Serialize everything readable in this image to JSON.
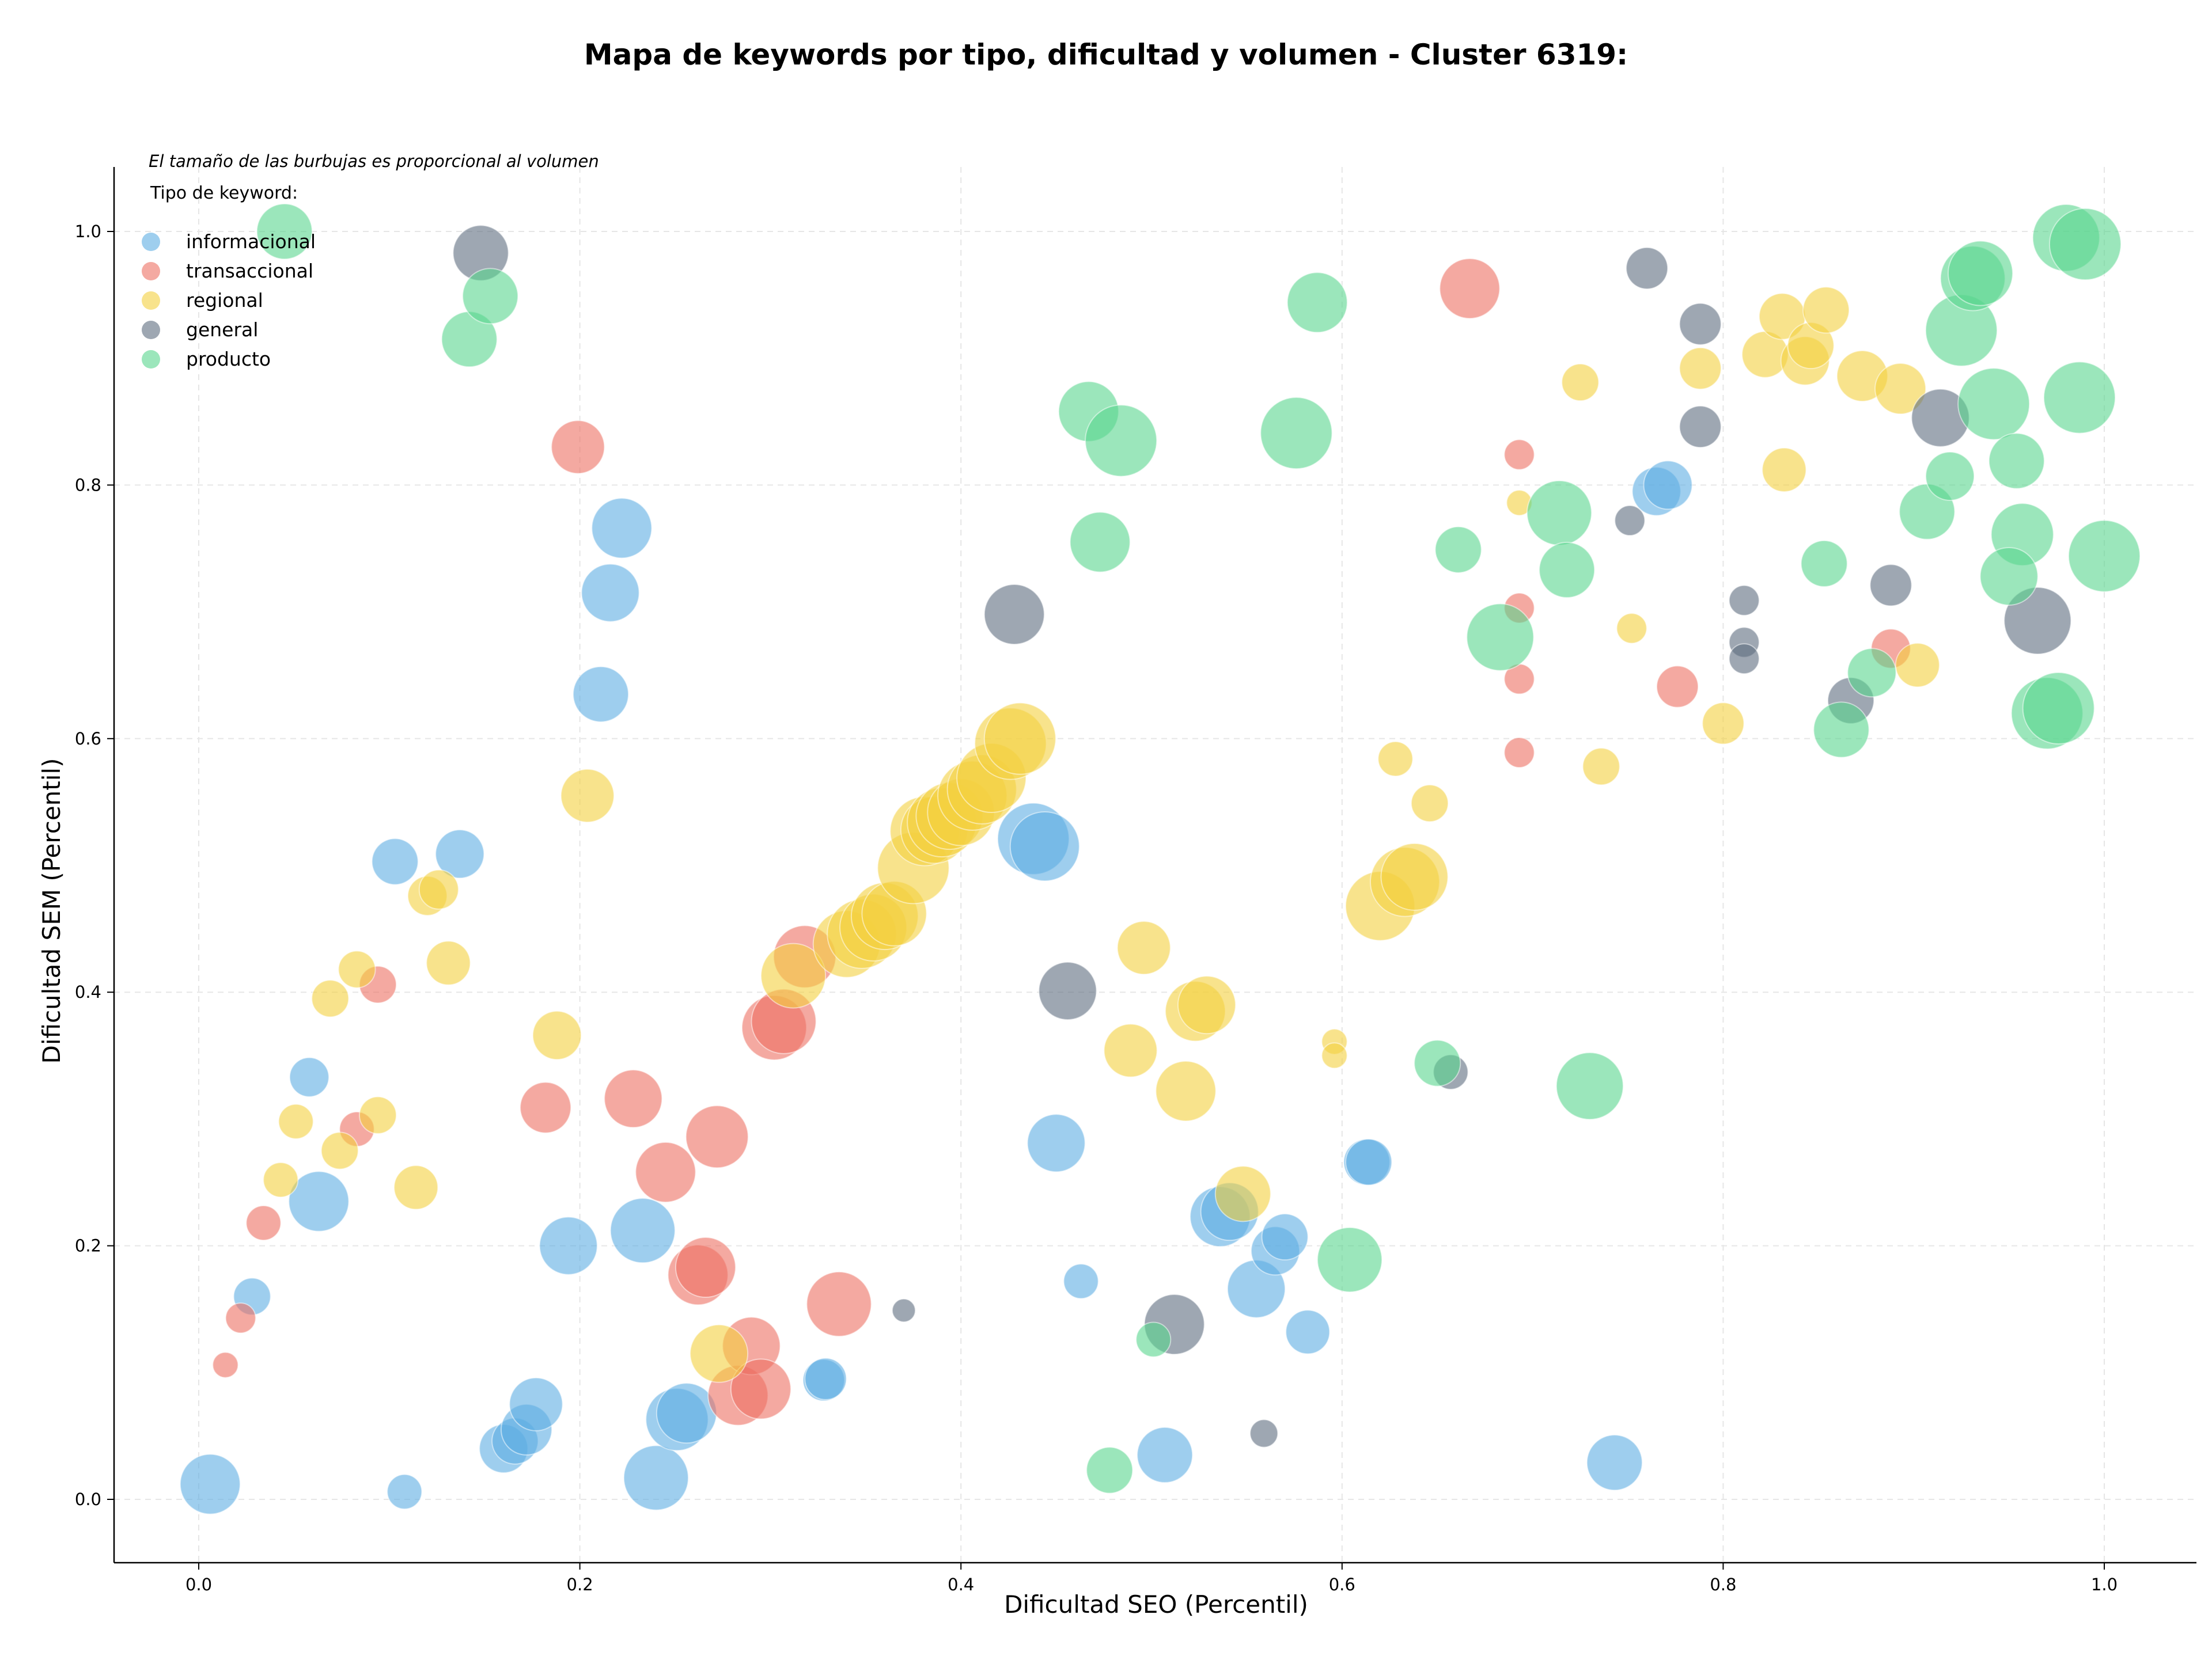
{
  "chart_data": {
    "type": "scatter",
    "title": "Mapa de keywords por tipo, dificultad y volumen - Cluster 6319:",
    "xlabel": "Dificultad SEO (Percentil)",
    "ylabel": "Dificultad SEM (Percentil)",
    "xlim": [
      -0.045,
      1.045
    ],
    "ylim": [
      -0.045,
      1.05
    ],
    "xticks": [
      "0.0",
      "0.2",
      "0.4",
      "0.6",
      "0.8",
      "1.0"
    ],
    "yticks": [
      "0.0",
      "0.2",
      "0.4",
      "0.6",
      "0.8",
      "1.0"
    ],
    "grid": true,
    "note": "El tamaño de las burbujas es proporcional al volumen",
    "legend_title": "Tipo de keyword:",
    "legend_position": "top-left",
    "series": [
      {
        "name": "informacional",
        "color": "#5DADE2",
        "points": [
          [
            0.006,
            0.012,
            52
          ],
          [
            0.108,
            0.006,
            30
          ],
          [
            0.028,
            0.16,
            32
          ],
          [
            0.058,
            0.333,
            34
          ],
          [
            0.063,
            0.235,
            52
          ],
          [
            0.103,
            0.503,
            40
          ],
          [
            0.137,
            0.509,
            42
          ],
          [
            0.16,
            0.04,
            42
          ],
          [
            0.166,
            0.046,
            40
          ],
          [
            0.172,
            0.055,
            44
          ],
          [
            0.177,
            0.075,
            46
          ],
          [
            0.194,
            0.2,
            50
          ],
          [
            0.211,
            0.635,
            48
          ],
          [
            0.216,
            0.715,
            50
          ],
          [
            0.222,
            0.766,
            52
          ],
          [
            0.233,
            0.212,
            56
          ],
          [
            0.24,
            0.017,
            56
          ],
          [
            0.251,
            0.063,
            54
          ],
          [
            0.256,
            0.068,
            52
          ],
          [
            0.328,
            0.094,
            36
          ],
          [
            0.329,
            0.095,
            36
          ],
          [
            0.438,
            0.521,
            62
          ],
          [
            0.444,
            0.515,
            60
          ],
          [
            0.45,
            0.281,
            50
          ],
          [
            0.463,
            0.172,
            30
          ],
          [
            0.507,
            0.035,
            48
          ],
          [
            0.536,
            0.223,
            52
          ],
          [
            0.541,
            0.227,
            50
          ],
          [
            0.555,
            0.166,
            50
          ],
          [
            0.565,
            0.196,
            42
          ],
          [
            0.57,
            0.207,
            40
          ],
          [
            0.582,
            0.132,
            38
          ],
          [
            0.613,
            0.266,
            40
          ],
          [
            0.614,
            0.266,
            40
          ],
          [
            0.743,
            0.029,
            48
          ],
          [
            0.765,
            0.795,
            42
          ],
          [
            0.771,
            0.8,
            42
          ]
        ]
      },
      {
        "name": "transaccional",
        "color": "#EC7063",
        "points": [
          [
            0.014,
            0.106,
            22
          ],
          [
            0.022,
            0.143,
            26
          ],
          [
            0.034,
            0.218,
            30
          ],
          [
            0.083,
            0.292,
            30
          ],
          [
            0.094,
            0.406,
            32
          ],
          [
            0.182,
            0.309,
            44
          ],
          [
            0.199,
            0.83,
            46
          ],
          [
            0.228,
            0.316,
            50
          ],
          [
            0.245,
            0.258,
            52
          ],
          [
            0.262,
            0.177,
            52
          ],
          [
            0.266,
            0.183,
            52
          ],
          [
            0.272,
            0.286,
            54
          ],
          [
            0.283,
            0.082,
            52
          ],
          [
            0.29,
            0.121,
            50
          ],
          [
            0.295,
            0.087,
            52
          ],
          [
            0.302,
            0.372,
            56
          ],
          [
            0.307,
            0.377,
            56
          ],
          [
            0.318,
            0.428,
            54
          ],
          [
            0.336,
            0.154,
            56
          ],
          [
            0.667,
            0.955,
            52
          ],
          [
            0.693,
            0.824,
            26
          ],
          [
            0.693,
            0.703,
            26
          ],
          [
            0.693,
            0.647,
            26
          ],
          [
            0.693,
            0.589,
            26
          ],
          [
            0.776,
            0.641,
            36
          ],
          [
            0.888,
            0.671,
            34
          ]
        ]
      },
      {
        "name": "regional",
        "color": "#F4D03F",
        "points": [
          [
            0.043,
            0.252,
            30
          ],
          [
            0.051,
            0.298,
            30
          ],
          [
            0.069,
            0.395,
            32
          ],
          [
            0.074,
            0.275,
            32
          ],
          [
            0.083,
            0.418,
            32
          ],
          [
            0.094,
            0.303,
            32
          ],
          [
            0.114,
            0.246,
            38
          ],
          [
            0.12,
            0.476,
            34
          ],
          [
            0.126,
            0.481,
            34
          ],
          [
            0.131,
            0.423,
            38
          ],
          [
            0.188,
            0.366,
            42
          ],
          [
            0.204,
            0.555,
            46
          ],
          [
            0.273,
            0.115,
            50
          ],
          [
            0.312,
            0.413,
            56
          ],
          [
            0.34,
            0.438,
            58
          ],
          [
            0.348,
            0.446,
            60
          ],
          [
            0.354,
            0.451,
            58
          ],
          [
            0.36,
            0.46,
            58
          ],
          [
            0.365,
            0.462,
            56
          ],
          [
            0.375,
            0.498,
            62
          ],
          [
            0.381,
            0.527,
            60
          ],
          [
            0.386,
            0.528,
            58
          ],
          [
            0.39,
            0.534,
            60
          ],
          [
            0.394,
            0.539,
            58
          ],
          [
            0.4,
            0.542,
            58
          ],
          [
            0.406,
            0.555,
            60
          ],
          [
            0.411,
            0.56,
            60
          ],
          [
            0.416,
            0.569,
            60
          ],
          [
            0.426,
            0.596,
            62
          ],
          [
            0.431,
            0.6,
            62
          ],
          [
            0.489,
            0.354,
            46
          ],
          [
            0.496,
            0.435,
            46
          ],
          [
            0.518,
            0.322,
            52
          ],
          [
            0.523,
            0.385,
            52
          ],
          [
            0.529,
            0.39,
            50
          ],
          [
            0.548,
            0.241,
            48
          ],
          [
            0.596,
            0.361,
            22
          ],
          [
            0.596,
            0.35,
            22
          ],
          [
            0.62,
            0.468,
            60
          ],
          [
            0.633,
            0.487,
            60
          ],
          [
            0.638,
            0.491,
            58
          ],
          [
            0.628,
            0.584,
            30
          ],
          [
            0.646,
            0.549,
            32
          ],
          [
            0.693,
            0.786,
            22
          ],
          [
            0.725,
            0.881,
            32
          ],
          [
            0.736,
            0.578,
            32
          ],
          [
            0.752,
            0.687,
            26
          ],
          [
            0.788,
            0.892,
            36
          ],
          [
            0.8,
            0.612,
            36
          ],
          [
            0.822,
            0.903,
            40
          ],
          [
            0.832,
            0.812,
            38
          ],
          [
            0.831,
            0.933,
            40
          ],
          [
            0.843,
            0.898,
            42
          ],
          [
            0.846,
            0.91,
            40
          ],
          [
            0.854,
            0.938,
            40
          ],
          [
            0.873,
            0.886,
            44
          ],
          [
            0.893,
            0.876,
            44
          ],
          [
            0.902,
            0.658,
            38
          ]
        ]
      },
      {
        "name": "general",
        "color": "#5D6D7E",
        "points": [
          [
            0.148,
            0.983,
            48
          ],
          [
            0.37,
            0.149,
            20
          ],
          [
            0.428,
            0.698,
            52
          ],
          [
            0.456,
            0.401,
            50
          ],
          [
            0.512,
            0.138,
            52
          ],
          [
            0.559,
            0.052,
            24
          ],
          [
            0.657,
            0.337,
            30
          ],
          [
            0.751,
            0.772,
            26
          ],
          [
            0.76,
            0.971,
            36
          ],
          [
            0.788,
            0.927,
            36
          ],
          [
            0.788,
            0.846,
            36
          ],
          [
            0.811,
            0.709,
            26
          ],
          [
            0.811,
            0.676,
            26
          ],
          [
            0.811,
            0.663,
            26
          ],
          [
            0.867,
            0.63,
            40
          ],
          [
            0.888,
            0.721,
            36
          ],
          [
            0.914,
            0.853,
            50
          ],
          [
            0.965,
            0.693,
            58
          ]
        ]
      },
      {
        "name": "producto",
        "color": "#58D68D",
        "points": [
          [
            0.045,
            1.0,
            48
          ],
          [
            0.142,
            0.915,
            48
          ],
          [
            0.153,
            0.949,
            48
          ],
          [
            0.467,
            0.858,
            52
          ],
          [
            0.473,
            0.755,
            52
          ],
          [
            0.484,
            0.835,
            62
          ],
          [
            0.478,
            0.023,
            40
          ],
          [
            0.501,
            0.126,
            30
          ],
          [
            0.576,
            0.841,
            62
          ],
          [
            0.587,
            0.944,
            52
          ],
          [
            0.604,
            0.189,
            56
          ],
          [
            0.65,
            0.344,
            40
          ],
          [
            0.661,
            0.749,
            40
          ],
          [
            0.683,
            0.68,
            58
          ],
          [
            0.714,
            0.778,
            56
          ],
          [
            0.718,
            0.733,
            48
          ],
          [
            0.73,
            0.326,
            58
          ],
          [
            0.853,
            0.738,
            40
          ],
          [
            0.862,
            0.607,
            48
          ],
          [
            0.878,
            0.652,
            42
          ],
          [
            0.907,
            0.779,
            48
          ],
          [
            0.919,
            0.807,
            42
          ],
          [
            0.925,
            0.922,
            62
          ],
          [
            0.931,
            0.963,
            56
          ],
          [
            0.935,
            0.967,
            56
          ],
          [
            0.942,
            0.864,
            62
          ],
          [
            0.954,
            0.819,
            48
          ],
          [
            0.957,
            0.761,
            54
          ],
          [
            0.95,
            0.728,
            50
          ],
          [
            0.97,
            0.62,
            62
          ],
          [
            0.976,
            0.624,
            62
          ],
          [
            0.98,
            0.995,
            58
          ],
          [
            0.99,
            0.99,
            62
          ],
          [
            0.987,
            0.869,
            62
          ],
          [
            1.0,
            0.744,
            62
          ]
        ]
      }
    ]
  }
}
